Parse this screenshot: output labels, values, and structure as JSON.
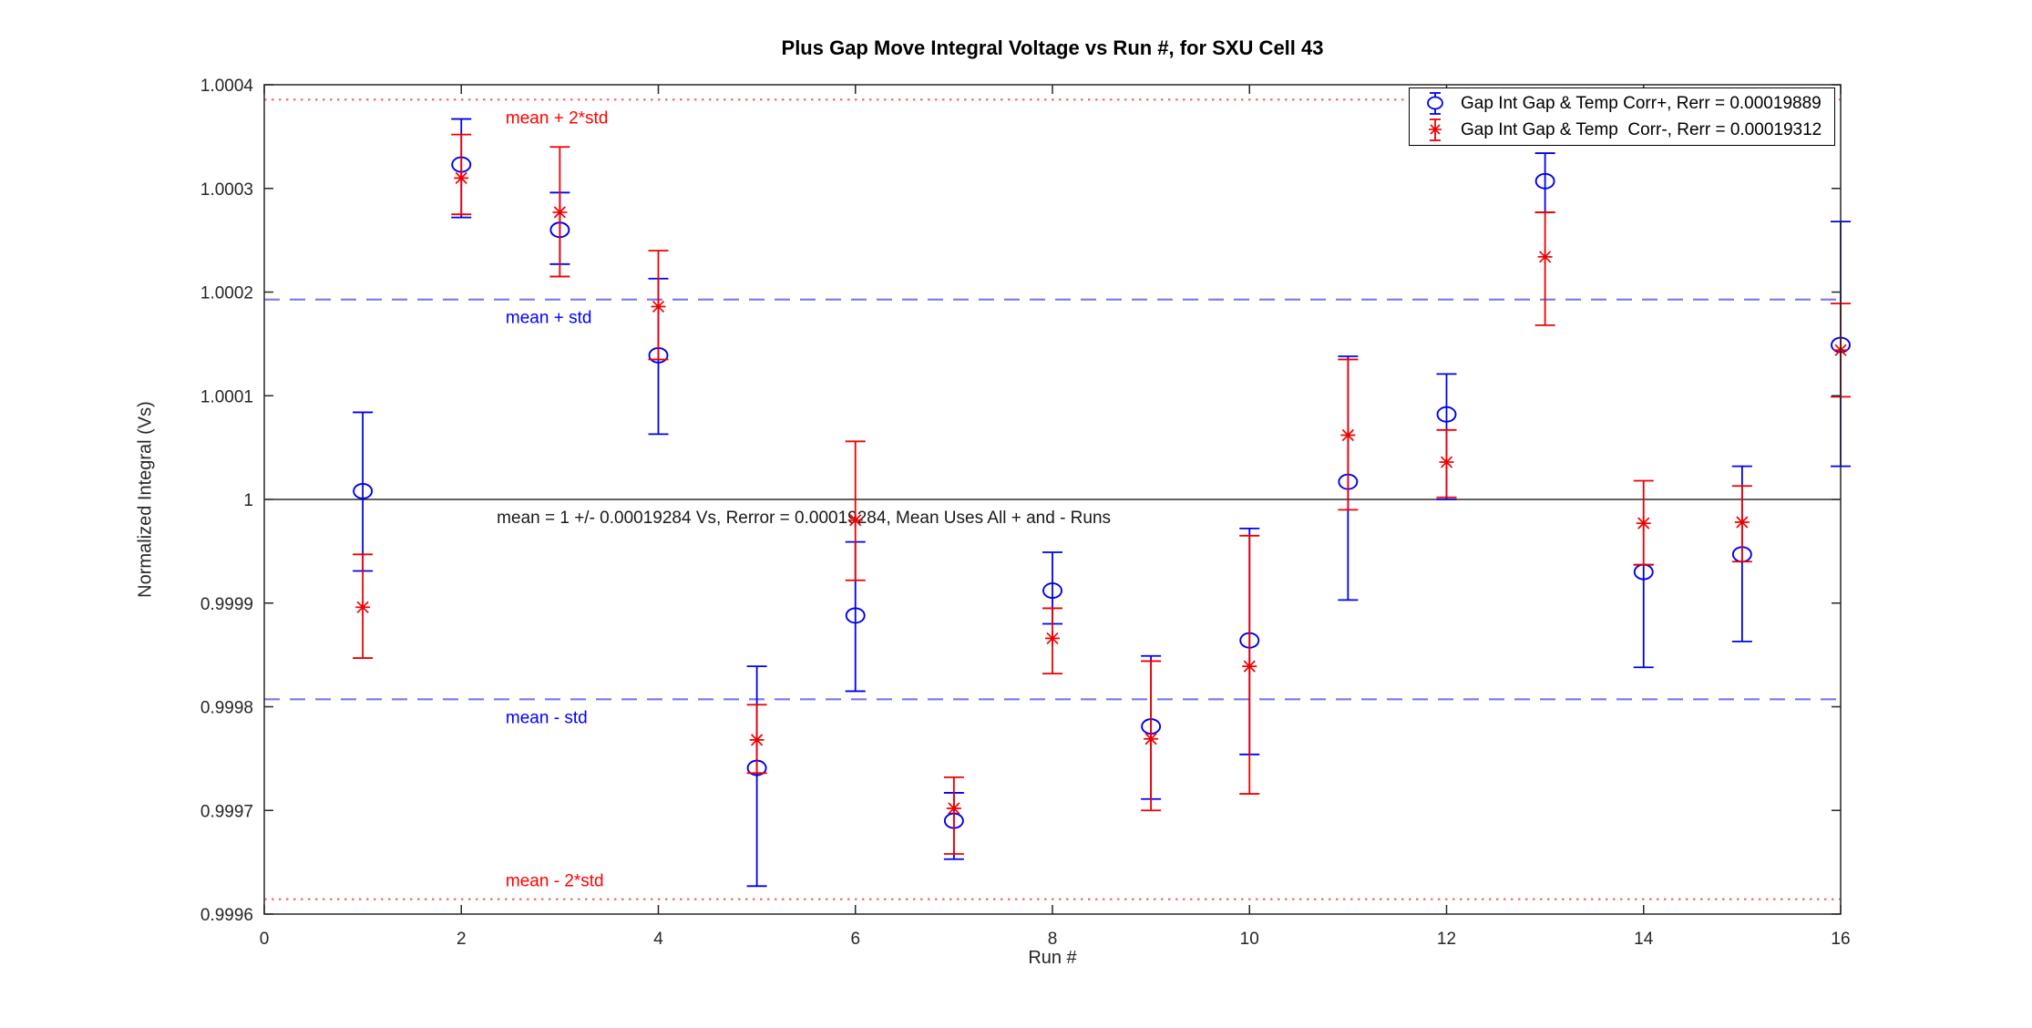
{
  "chart_data": {
    "type": "scatter",
    "title": "Plus Gap Move Integral Voltage vs Run #, for SXU Cell 43",
    "xlabel": "Run #",
    "ylabel": "Normalized Integral (Vs)",
    "xlim": [
      0,
      16
    ],
    "ylim": [
      0.9996,
      1.0004
    ],
    "grid": false,
    "xticks": [
      0,
      2,
      4,
      6,
      8,
      10,
      12,
      14,
      16
    ],
    "xtick_labels": [
      "0",
      "2",
      "4",
      "6",
      "8",
      "10",
      "12",
      "14",
      "16"
    ],
    "yticks": [
      0.9996,
      0.9997,
      0.9998,
      0.9999,
      1,
      1.0001,
      1.0002,
      1.0003,
      1.0004
    ],
    "ytick_labels": [
      "0.9996",
      "0.9997",
      "0.9998",
      "0.9999",
      "1",
      "1.0001",
      "1.0002",
      "1.0003",
      "1.0004"
    ],
    "legend": {
      "position": "top-right",
      "entries": [
        {
          "label": "Gap Int Gap & Temp Corr+, Rerr = 0.00019889",
          "marker": "circle-errorbar",
          "color": "#0000ee"
        },
        {
          "label": "Gap Int Gap & Temp  Corr-, Rerr = 0.00019312",
          "marker": "asterisk-errorbar",
          "color": "#ee0000"
        }
      ]
    },
    "reference_lines": [
      {
        "label": "mean + 2*std",
        "value": 1.00038568,
        "style": "dotted",
        "line_color": "#f26666",
        "label_color": "#ff0000",
        "label_x": 2.45,
        "label_side": "below"
      },
      {
        "label": "mean + std",
        "value": 1.00019284,
        "style": "dashed",
        "line_color": "#7878ea",
        "label_color": "#0000ff",
        "label_x": 2.45,
        "label_side": "below"
      },
      {
        "label": "mean = 1 +/- 0.00019284 Vs, Rerror = 0.00019284, Mean Uses All + and - Runs",
        "value": 1,
        "style": "solid",
        "line_color": "#000000",
        "label_color": "#1a1a1a",
        "label_x": 2.36,
        "label_side": "below"
      },
      {
        "label": "mean - std",
        "value": 0.99980716,
        "style": "dashed",
        "line_color": "#7878ea",
        "label_color": "#0000ff",
        "label_x": 2.45,
        "label_side": "below"
      },
      {
        "label": "mean - 2*std",
        "value": 0.99961432,
        "style": "dotted",
        "line_color": "#f26666",
        "label_color": "#ff0000",
        "label_x": 2.45,
        "label_side": "above"
      }
    ],
    "series": [
      {
        "name": "Gap Int Gap & Temp Corr+, Rerr = 0.00019889",
        "marker": "circle",
        "color": "#0000ee",
        "x": [
          1,
          2,
          3,
          4,
          5,
          6,
          7,
          8,
          9,
          10,
          11,
          12,
          13,
          14,
          15,
          16
        ],
        "y": [
          1.000008,
          1.000323,
          1.00026,
          1.000139,
          0.999741,
          0.999888,
          0.99969,
          0.999912,
          0.999781,
          0.999864,
          1.000017,
          1.000082,
          1.000307,
          0.99993,
          0.999947,
          1.000149
        ],
        "y_lo": [
          0.999931,
          1.000272,
          1.000227,
          1.000063,
          0.999627,
          0.999815,
          0.999653,
          0.99988,
          0.999711,
          0.999754,
          0.999903,
          1.0,
          1.000277,
          0.999838,
          0.999863,
          1.000032
        ],
        "y_hi": [
          1.000084,
          1.000367,
          1.000296,
          1.000213,
          0.999839,
          0.999959,
          0.999717,
          0.999949,
          0.999849,
          0.999972,
          1.000138,
          1.000121,
          1.000334,
          0.999937,
          1.000032,
          1.000268
        ]
      },
      {
        "name": "Gap Int Gap & Temp  Corr-, Rerr = 0.00019312",
        "marker": "asterisk",
        "color": "#ee0000",
        "x": [
          1,
          2,
          3,
          4,
          5,
          6,
          7,
          8,
          9,
          10,
          11,
          12,
          13,
          14,
          15,
          16
        ],
        "y": [
          0.999896,
          1.00031,
          1.000277,
          1.000186,
          0.999768,
          0.99998,
          0.999702,
          0.999866,
          0.999769,
          0.999839,
          1.000062,
          1.000036,
          1.000234,
          0.999977,
          0.999978,
          1.000144
        ],
        "y_lo": [
          0.999847,
          1.000275,
          1.000215,
          1.000135,
          0.999736,
          0.999922,
          0.999658,
          0.999832,
          0.9997,
          0.999716,
          0.99999,
          1.000002,
          1.000168,
          0.999937,
          0.99994,
          1.000099
        ],
        "y_hi": [
          0.999947,
          1.000352,
          1.00034,
          1.00024,
          0.999802,
          1.000056,
          0.999732,
          0.999895,
          0.999844,
          0.999965,
          1.000135,
          1.000067,
          1.000277,
          1.000018,
          1.000013,
          1.000189
        ]
      }
    ]
  }
}
